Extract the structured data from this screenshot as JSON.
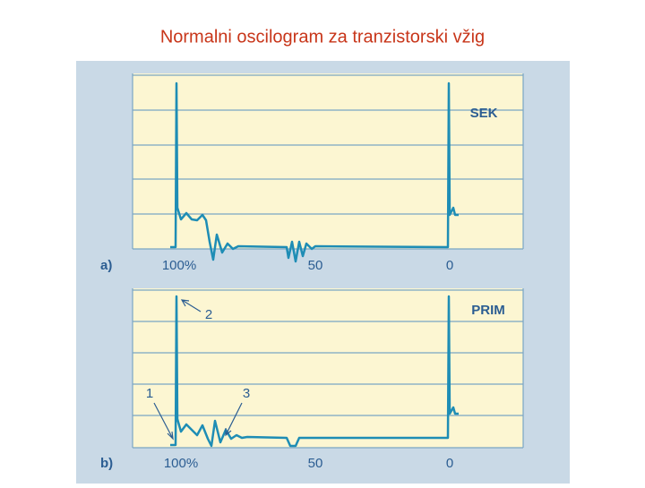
{
  "title": "Normalni oscilogram za tranzistorski vžig",
  "panels": [
    {
      "label": "a)",
      "name": "SEK",
      "axis_labels": [
        "100%",
        "50",
        "0"
      ]
    },
    {
      "label": "b)",
      "name": "PRIM",
      "axis_labels": [
        "100%",
        "50",
        "0"
      ],
      "annotations": [
        "1",
        "2",
        "3"
      ]
    }
  ]
}
